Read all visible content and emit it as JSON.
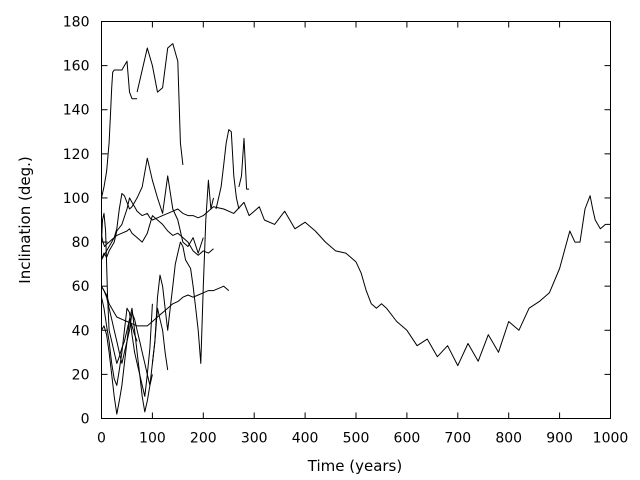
{
  "chart_data": {
    "type": "line",
    "title": "",
    "xlabel": "Time (years)",
    "ylabel": "Inclination (deg.)",
    "xlim": [
      0,
      1000
    ],
    "ylim": [
      0,
      180
    ],
    "grid": false,
    "legend": "none",
    "x_ticks": [
      0,
      100,
      200,
      300,
      400,
      500,
      600,
      700,
      800,
      900,
      1000
    ],
    "y_ticks": [
      0,
      20,
      40,
      60,
      80,
      100,
      120,
      140,
      160,
      180
    ],
    "series": [
      {
        "x": [
          0,
          5,
          10,
          15,
          20,
          25,
          30,
          40,
          50,
          55,
          60,
          65,
          70,
          80,
          90,
          95,
          100,
          110,
          120,
          130,
          140,
          150,
          160,
          170,
          180,
          190,
          200,
          220,
          240,
          260,
          280,
          290,
          300,
          310,
          320,
          340,
          360,
          380,
          400,
          420,
          440,
          460,
          480,
          500,
          510,
          520,
          530,
          540,
          550,
          560,
          580,
          600,
          620,
          640,
          660,
          680,
          700,
          720,
          740,
          760,
          780,
          800,
          820,
          840,
          860,
          880,
          900,
          920,
          930,
          940,
          950,
          960,
          965,
          970,
          975,
          980,
          985,
          990,
          1000
        ],
        "y": [
          72,
          75,
          73,
          76,
          78,
          80,
          85,
          88,
          95,
          100,
          98,
          96,
          94,
          92,
          93,
          91,
          90,
          91,
          92,
          93,
          94,
          95,
          93,
          92,
          92,
          91,
          92,
          96,
          95,
          93,
          98,
          92,
          94,
          96,
          90,
          88,
          94,
          86,
          89,
          85,
          80,
          76,
          75,
          71,
          66,
          58,
          52,
          50,
          52,
          50,
          44,
          40,
          33,
          36,
          28,
          33,
          24,
          34,
          26,
          38,
          30,
          44,
          40,
          50,
          53,
          57,
          68,
          85,
          80,
          80,
          95,
          101,
          95,
          90,
          88,
          86,
          87,
          88,
          88
        ]
      },
      {
        "x": [
          0,
          5,
          10,
          15,
          20,
          25,
          30,
          40,
          50,
          60,
          70,
          80,
          90,
          100,
          110,
          120,
          130,
          140,
          150,
          160,
          170,
          180,
          190,
          200,
          210,
          220,
          230,
          240,
          250
        ],
        "y": [
          60,
          58,
          56,
          52,
          50,
          48,
          46,
          45,
          44,
          43,
          42,
          42,
          42,
          44,
          46,
          48,
          50,
          52,
          53,
          55,
          56,
          55,
          56,
          57,
          58,
          58,
          59,
          60,
          58
        ]
      },
      {
        "x": [
          0,
          5,
          10,
          15,
          20,
          25,
          30,
          40,
          50,
          55,
          60,
          70,
          80,
          90,
          100,
          110,
          120,
          130,
          140,
          150,
          160,
          170,
          180,
          190,
          200,
          210,
          220
        ],
        "y": [
          72,
          74,
          76,
          78,
          80,
          82,
          83,
          84,
          85,
          86,
          84,
          82,
          80,
          84,
          92,
          90,
          88,
          85,
          83,
          84,
          82,
          80,
          76,
          74,
          76,
          75,
          77
        ]
      },
      {
        "x": [
          0,
          3,
          6,
          10,
          15,
          20,
          25,
          30,
          35,
          40,
          45,
          50,
          55,
          60,
          70,
          80,
          90,
          100,
          110,
          120,
          130,
          140,
          150,
          160,
          170,
          180,
          190,
          200
        ],
        "y": [
          83,
          80,
          78,
          79,
          80,
          81,
          82,
          86,
          95,
          102,
          101,
          98,
          95,
          96,
          100,
          105,
          118,
          108,
          100,
          93,
          110,
          95,
          90,
          80,
          78,
          82,
          75,
          82
        ]
      },
      {
        "x": [
          0,
          5,
          10,
          15,
          18,
          20,
          22,
          25,
          30,
          35,
          40,
          45,
          50,
          55,
          60,
          65,
          70
        ],
        "y": [
          100,
          105,
          112,
          125,
          140,
          150,
          157,
          158,
          158,
          158,
          158,
          160,
          162,
          148,
          145,
          145,
          145
        ]
      },
      {
        "x": [
          70,
          80,
          90,
          100,
          110,
          120,
          130,
          140,
          150,
          155,
          160
        ],
        "y": [
          148,
          158,
          168,
          160,
          148,
          150,
          168,
          170,
          162,
          125,
          115
        ]
      },
      {
        "x": [
          0,
          5,
          10,
          15,
          20,
          25,
          30,
          35,
          40,
          45,
          50,
          55,
          60,
          65,
          70,
          75,
          80,
          85,
          90,
          95,
          100
        ],
        "y": [
          55,
          50,
          42,
          35,
          25,
          18,
          15,
          22,
          30,
          40,
          50,
          48,
          38,
          30,
          25,
          20,
          15,
          10,
          20,
          32,
          52
        ]
      },
      {
        "x": [
          0,
          5,
          10,
          15,
          20,
          25,
          30,
          35,
          40,
          45,
          50,
          55,
          60,
          65,
          70,
          75,
          80,
          85,
          90,
          95,
          100,
          105,
          110,
          115,
          120,
          125,
          130
        ],
        "y": [
          60,
          58,
          55,
          50,
          45,
          40,
          35,
          30,
          25,
          30,
          35,
          40,
          48,
          45,
          40,
          35,
          30,
          25,
          20,
          15,
          25,
          35,
          50,
          45,
          40,
          30,
          22
        ]
      },
      {
        "x": [
          0,
          5,
          10,
          15,
          20,
          25,
          30,
          35,
          40,
          45,
          50,
          55,
          60,
          65,
          70,
          75,
          80,
          85,
          90,
          95,
          100
        ],
        "y": [
          40,
          42,
          38,
          30,
          20,
          10,
          2,
          8,
          15,
          25,
          35,
          45,
          50,
          40,
          30,
          20,
          10,
          3,
          8,
          15,
          20
        ]
      },
      {
        "x": [
          100,
          105,
          110,
          115,
          120,
          125,
          130,
          135,
          140,
          145,
          150,
          155,
          160,
          165,
          170,
          175,
          180,
          185,
          190,
          195,
          200,
          205,
          210,
          215,
          220
        ],
        "y": [
          25,
          35,
          55,
          65,
          60,
          50,
          40,
          50,
          60,
          70,
          75,
          80,
          78,
          72,
          70,
          68,
          60,
          50,
          40,
          25,
          60,
          90,
          108,
          95,
          100
        ]
      },
      {
        "x": [
          225,
          230,
          235,
          240,
          245,
          250,
          255,
          260,
          265,
          270
        ],
        "y": [
          95,
          100,
          105,
          115,
          125,
          131,
          130,
          110,
          100,
          95
        ]
      },
      {
        "x": [
          270,
          275,
          280,
          285,
          290
        ],
        "y": [
          105,
          110,
          127,
          104,
          104
        ]
      },
      {
        "x": [
          0,
          2,
          5,
          8,
          10,
          12,
          15,
          20,
          25,
          30,
          35,
          40,
          45,
          50,
          55,
          60,
          65,
          70
        ],
        "y": [
          80,
          90,
          93,
          85,
          70,
          55,
          40,
          35,
          30,
          25,
          28,
          32,
          35,
          40,
          45,
          42,
          38,
          35
        ]
      }
    ]
  }
}
